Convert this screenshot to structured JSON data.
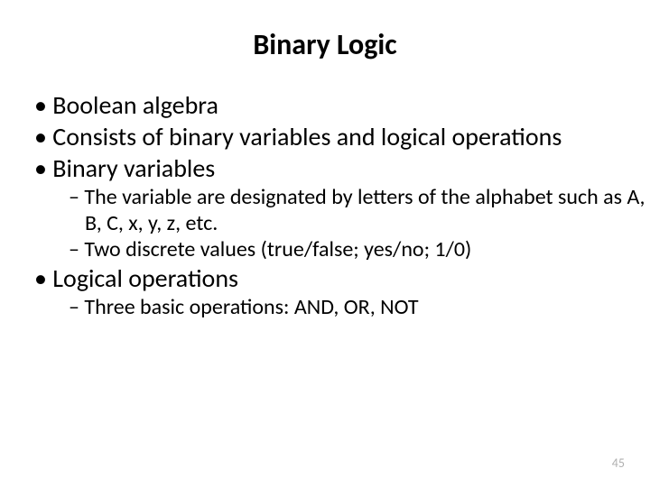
{
  "title": "Binary Logic",
  "title_fontsize": 32,
  "l1_fontsize": 28,
  "l2_fontsize": 24,
  "pagenum_fontsize": 14,
  "text_color": "#000000",
  "bg_color": "#ffffff",
  "pagenum_color": "#b0b0b0",
  "bullets": {
    "b1": "Boolean algebra",
    "b2": "Consists of binary variables and logical operations",
    "b3": "Binary variables",
    "b3a": "The variable are designated by letters of the alphabet such as A, B, C, x, y, z, etc.",
    "b3b": "Two discrete values (true/false; yes/no; 1/0)",
    "b4": "Logical operations",
    "b4a": "Three basic operations: AND, OR, NOT"
  },
  "page_number": "45"
}
